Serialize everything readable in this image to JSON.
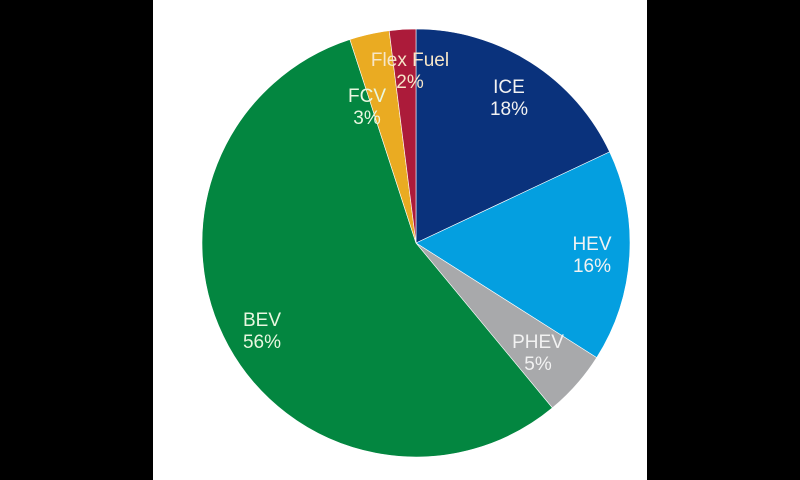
{
  "chart_data": {
    "type": "pie",
    "title": "",
    "start_angle_deg": 0,
    "direction": "clockwise",
    "categories": [
      "ICE",
      "HEV",
      "PHEV",
      "BEV",
      "FCV",
      "Flex Fuel"
    ],
    "values": [
      18,
      16,
      5,
      56,
      3,
      2
    ],
    "unit": "%",
    "colors": [
      "#0a327c",
      "#049fe0",
      "#a8a9ab",
      "#038640",
      "#eaab22",
      "#ac1b3a"
    ],
    "labels": [
      {
        "name": "ICE",
        "value": "18%"
      },
      {
        "name": "HEV",
        "value": "16%"
      },
      {
        "name": "PHEV",
        "value": "5%"
      },
      {
        "name": "BEV",
        "value": "56%"
      },
      {
        "name": "FCV",
        "value": "3%"
      },
      {
        "name": "Flex Fuel",
        "value": "2%"
      }
    ],
    "legend": "none (labels inside slices)"
  }
}
